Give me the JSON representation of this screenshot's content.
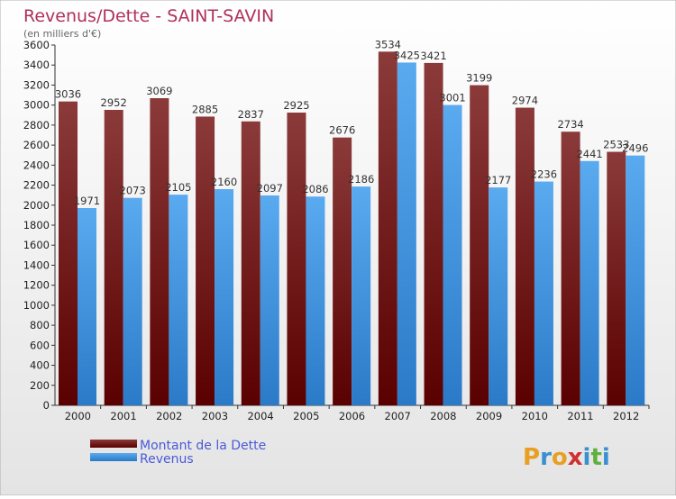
{
  "title": "Revenus/Dette - SAINT-SAVIN",
  "subtitle": "(en milliers d'€)",
  "brand": {
    "name": "Proxiti",
    "letters": [
      "P",
      "r",
      "o",
      "x",
      "i",
      "t",
      "i"
    ],
    "colors": [
      "#e8a020",
      "#3a8fd0",
      "#e8a020",
      "#d03030",
      "#3a8fd0",
      "#60b040",
      "#3a8fd0"
    ]
  },
  "colors": {
    "title": "#b0305a",
    "legend_text": "#4a5ad8",
    "debt_light": "#8b3a3a",
    "debt_dark": "#5a0000",
    "rev_light": "#5aaaf0",
    "rev_dark": "#2a7ac8",
    "background_top": "#ffffff",
    "background_bottom": "#e4e4e4"
  },
  "chart_data": {
    "type": "bar",
    "categories": [
      "2000",
      "2001",
      "2002",
      "2003",
      "2004",
      "2005",
      "2006",
      "2007",
      "2008",
      "2009",
      "2010",
      "2011",
      "2012"
    ],
    "series": [
      {
        "name": "Montant de la Dette",
        "values": [
          3036,
          2952,
          3069,
          2885,
          2837,
          2925,
          2676,
          3534,
          3421,
          3199,
          2974,
          2734,
          2533
        ]
      },
      {
        "name": "Revenus",
        "values": [
          1971,
          2073,
          2105,
          2160,
          2097,
          2086,
          2186,
          3425,
          3001,
          2177,
          2236,
          2441,
          2496
        ]
      }
    ],
    "ylim": [
      0,
      3600
    ],
    "yticks": [
      0,
      200,
      400,
      600,
      800,
      1000,
      1200,
      1400,
      1600,
      1800,
      2000,
      2200,
      2400,
      2600,
      2800,
      3000,
      3200,
      3400,
      3600
    ],
    "grid": false,
    "legend": "bottom-left"
  }
}
